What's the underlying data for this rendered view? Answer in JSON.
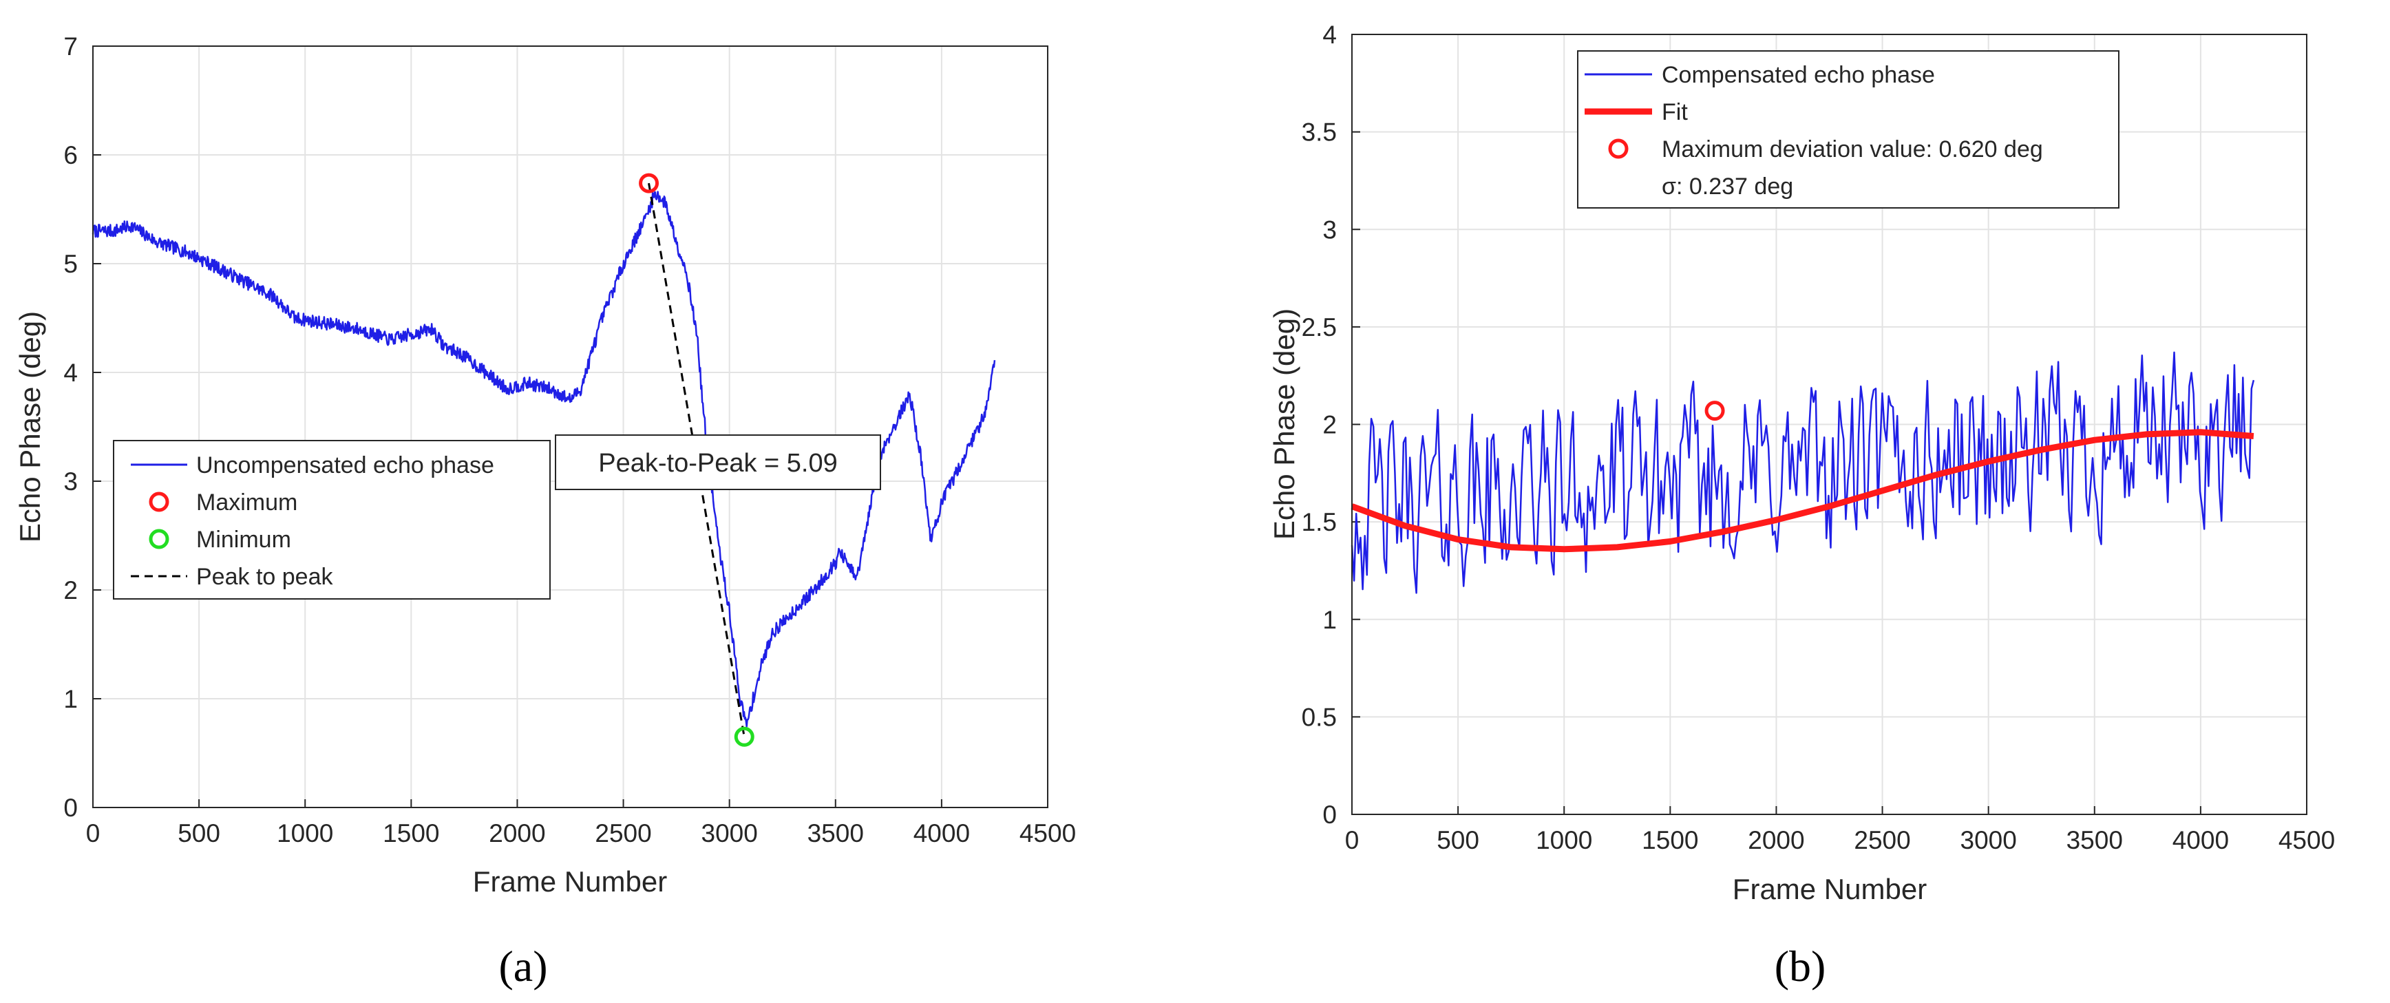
{
  "chart_data": [
    {
      "panel": "a",
      "type": "line",
      "sublabel": "(a)",
      "xlabel": "Frame Number",
      "ylabel": "Echo Phase (deg)",
      "xlim": [
        0,
        4500
      ],
      "ylim": [
        0,
        7
      ],
      "xticks": [
        0,
        500,
        1000,
        1500,
        2000,
        2500,
        3000,
        3500,
        4000,
        4500
      ],
      "yticks": [
        0,
        1,
        2,
        3,
        4,
        5,
        6,
        7
      ],
      "grid": true,
      "series": [
        {
          "name": "Uncompensated echo phase",
          "color": "#1f1fe6",
          "noise": 0.06,
          "x": [
            0,
            100,
            180,
            300,
            450,
            600,
            750,
            850,
            950,
            1100,
            1250,
            1400,
            1500,
            1600,
            1650,
            1750,
            1850,
            1950,
            2050,
            2150,
            2250,
            2300,
            2400,
            2500,
            2600,
            2650,
            2700,
            2750,
            2800,
            2850,
            2870,
            2900,
            2950,
            3000,
            3050,
            3080,
            3150,
            3200,
            3300,
            3400,
            3500,
            3520,
            3600,
            3650,
            3700,
            3750,
            3800,
            3850,
            3900,
            3950,
            4000,
            4050,
            4100,
            4150,
            4200,
            4250
          ],
          "y": [
            5.3,
            5.3,
            5.35,
            5.2,
            5.1,
            4.95,
            4.8,
            4.7,
            4.5,
            4.45,
            4.4,
            4.3,
            4.35,
            4.4,
            4.25,
            4.15,
            4.0,
            3.85,
            3.9,
            3.85,
            3.75,
            3.85,
            4.5,
            5.0,
            5.4,
            5.65,
            5.55,
            5.2,
            4.9,
            4.3,
            3.8,
            3.2,
            2.4,
            1.8,
            1.0,
            0.75,
            1.3,
            1.6,
            1.8,
            2.0,
            2.25,
            2.35,
            2.1,
            2.6,
            3.2,
            3.4,
            3.6,
            3.8,
            3.25,
            2.45,
            2.8,
            3.0,
            3.2,
            3.4,
            3.6,
            4.1
          ]
        },
        {
          "name": "Peak to peak",
          "color": "#000000",
          "style": "dashed",
          "x": [
            2620,
            3070
          ],
          "y": [
            5.74,
            0.65
          ]
        }
      ],
      "markers": [
        {
          "name": "Maximum",
          "x": 2620,
          "y": 5.74,
          "color": "#ff1a1a"
        },
        {
          "name": "Minimum",
          "x": 3070,
          "y": 0.65,
          "color": "#22dd22"
        }
      ],
      "legend": [
        "Uncompensated echo phase",
        "Maximum",
        "Minimum",
        "Peak to peak"
      ],
      "legend_position": "center-left",
      "annotation": "Peak-to-Peak = 5.09"
    },
    {
      "panel": "b",
      "type": "line",
      "sublabel": "(b)",
      "xlabel": "Frame Number",
      "ylabel": "Echo Phase (deg)",
      "xlim": [
        0,
        4500
      ],
      "ylim": [
        0,
        4
      ],
      "xticks": [
        0,
        500,
        1000,
        1500,
        2000,
        2500,
        3000,
        3500,
        4000,
        4500
      ],
      "yticks": [
        0,
        0.5,
        1,
        1.5,
        2,
        2.5,
        3,
        3.5,
        4
      ],
      "ytick_labels": [
        "0",
        "0.5",
        "1",
        "1.5",
        "2",
        "2.5",
        "3",
        "3.5",
        "4"
      ],
      "grid": true,
      "series": [
        {
          "name": "Compensated echo phase",
          "color": "#1f1fe6",
          "noise": 0.28,
          "x": [
            0,
            4250
          ],
          "y": [
            1.58,
            1.94
          ]
        },
        {
          "name": "Fit",
          "color": "#ff1a1a",
          "x": [
            0,
            250,
            500,
            750,
            1000,
            1250,
            1500,
            1750,
            2000,
            2250,
            2500,
            2750,
            3000,
            3250,
            3500,
            3750,
            4000,
            4250
          ],
          "y": [
            1.58,
            1.48,
            1.41,
            1.37,
            1.36,
            1.37,
            1.4,
            1.45,
            1.51,
            1.58,
            1.66,
            1.74,
            1.81,
            1.87,
            1.92,
            1.95,
            1.96,
            1.94
          ]
        }
      ],
      "markers": [
        {
          "name": "Maximum deviation value: 0.620 deg",
          "x": 1710,
          "y": 2.07,
          "color": "#ff1a1a"
        }
      ],
      "legend": [
        "Compensated echo phase",
        "Fit",
        "Maximum deviation value: 0.620 deg",
        "σ: 0.237 deg"
      ],
      "legend_position": "top-center"
    }
  ]
}
